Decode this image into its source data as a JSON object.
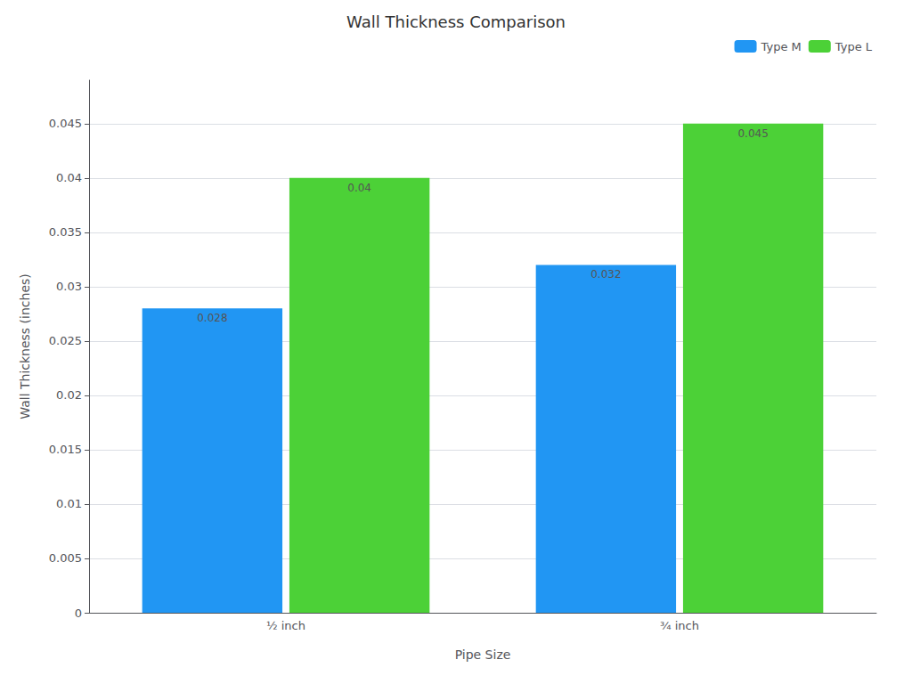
{
  "chart_data": {
    "type": "bar",
    "title": "Wall Thickness Comparison",
    "xlabel": "Pipe Size",
    "ylabel": "Wall Thickness (inches)",
    "categories": [
      "½ inch",
      "¾ inch"
    ],
    "series": [
      {
        "name": "Type M",
        "color": "#2196F3",
        "values": [
          0.028,
          0.032
        ]
      },
      {
        "name": "Type L",
        "color": "#4CD137",
        "values": [
          0.04,
          0.045
        ]
      }
    ],
    "ylim": [
      0,
      0.049
    ],
    "yticks": [
      0,
      0.005,
      0.01,
      0.015,
      0.02,
      0.025,
      0.03,
      0.035,
      0.04,
      0.045
    ],
    "grid": true,
    "legend": "upper right",
    "data_labels": true
  }
}
